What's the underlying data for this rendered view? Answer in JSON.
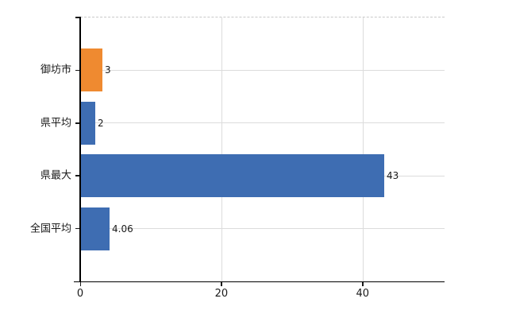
{
  "chart_data": {
    "type": "bar",
    "orientation": "horizontal",
    "title": "",
    "xlabel": "",
    "ylabel": "",
    "categories": [
      "御坊市",
      "県平均",
      "県最大",
      "全国平均"
    ],
    "values": [
      3,
      2,
      43,
      4.06
    ],
    "value_labels": [
      "3",
      "2",
      "43",
      "4.06"
    ],
    "bar_colors": [
      "orange",
      "blue",
      "blue",
      "blue"
    ],
    "xlim": [
      0,
      51.6
    ],
    "x_ticks": [
      0,
      20,
      40
    ],
    "x_tick_labels": [
      "0",
      "20",
      "40"
    ],
    "grid": true,
    "legend": false
  },
  "palette": {
    "orange": "#EF8A30",
    "blue": "#3E6DB2",
    "grid": "#DCDCDC",
    "axis": "#000000",
    "text": "#1A1A1A",
    "background": "#FFFFFF"
  }
}
